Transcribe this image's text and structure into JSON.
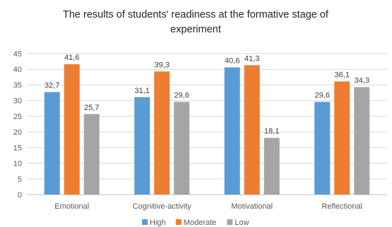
{
  "chart_data": {
    "type": "bar",
    "title_lines": [
      "The results of students' readiness at the formative stage of",
      "experiment"
    ],
    "categories": [
      "Emotional",
      "Cognitive-activity",
      "Motivational",
      "Reflectional"
    ],
    "series": [
      {
        "name": "High",
        "color": "#5b9bd5",
        "values": [
          32.7,
          31.1,
          40.6,
          29.6
        ],
        "labels": [
          "32,7",
          "31,1",
          "40,6",
          "29,6"
        ]
      },
      {
        "name": "Moderate",
        "color": "#ed7d31",
        "values": [
          41.6,
          39.3,
          41.3,
          36.1
        ],
        "labels": [
          "41,6",
          "39,3",
          "41,3",
          "36,1"
        ]
      },
      {
        "name": "Low",
        "color": "#a5a5a5",
        "values": [
          25.7,
          29.6,
          18.1,
          34.3
        ],
        "labels": [
          "25,7",
          "29,6",
          "18,1",
          "34,3"
        ]
      }
    ],
    "ylim": [
      0,
      45
    ],
    "yticks": [
      "0",
      "5",
      "10",
      "15",
      "20",
      "25",
      "30",
      "35",
      "40",
      "45"
    ],
    "grid": true,
    "legend_position": "bottom"
  }
}
